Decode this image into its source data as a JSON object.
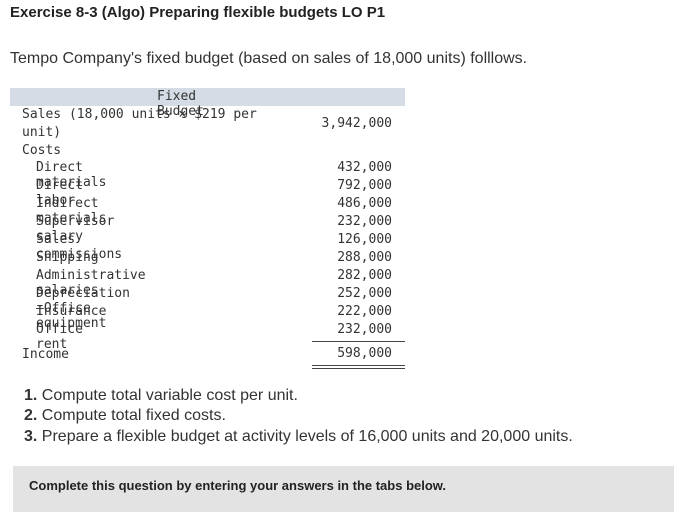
{
  "header": {
    "title": "Exercise 8-3 (Algo) Preparing flexible budgets LO P1"
  },
  "intro": "Tempo Company's fixed budget (based on sales of 18,000 units) folllows.",
  "table": {
    "column_header": "Fixed Budget",
    "sales": {
      "label": "Sales (18,000 units × $219 per unit)",
      "value": "3,942,000"
    },
    "costs_label": "Costs",
    "costs": [
      {
        "label": "Direct materials",
        "value": "432,000"
      },
      {
        "label": "Direct labor",
        "value": "792,000"
      },
      {
        "label": "Indirect materials",
        "value": "486,000"
      },
      {
        "label": "Supervisor salary",
        "value": "232,000"
      },
      {
        "label": "Sales commissions",
        "value": "126,000"
      },
      {
        "label": "Shipping",
        "value": "288,000"
      },
      {
        "label": "Administrative salaries",
        "value": "282,000"
      },
      {
        "label": "Depreciation—Office equipment",
        "value": "252,000"
      },
      {
        "label": "Insurance",
        "value": "222,000"
      },
      {
        "label": "Office rent",
        "value": "232,000"
      }
    ],
    "income": {
      "label": "Income",
      "value": "598,000"
    }
  },
  "questions": [
    {
      "number": "1.",
      "text": "Compute total variable cost per unit."
    },
    {
      "number": "2.",
      "text": "Compute total fixed costs."
    },
    {
      "number": "3.",
      "text": "Prepare a flexible budget at activity levels of 16,000 units and 20,000 units."
    }
  ],
  "instruction": "Complete this question by entering your answers in the tabs below."
}
